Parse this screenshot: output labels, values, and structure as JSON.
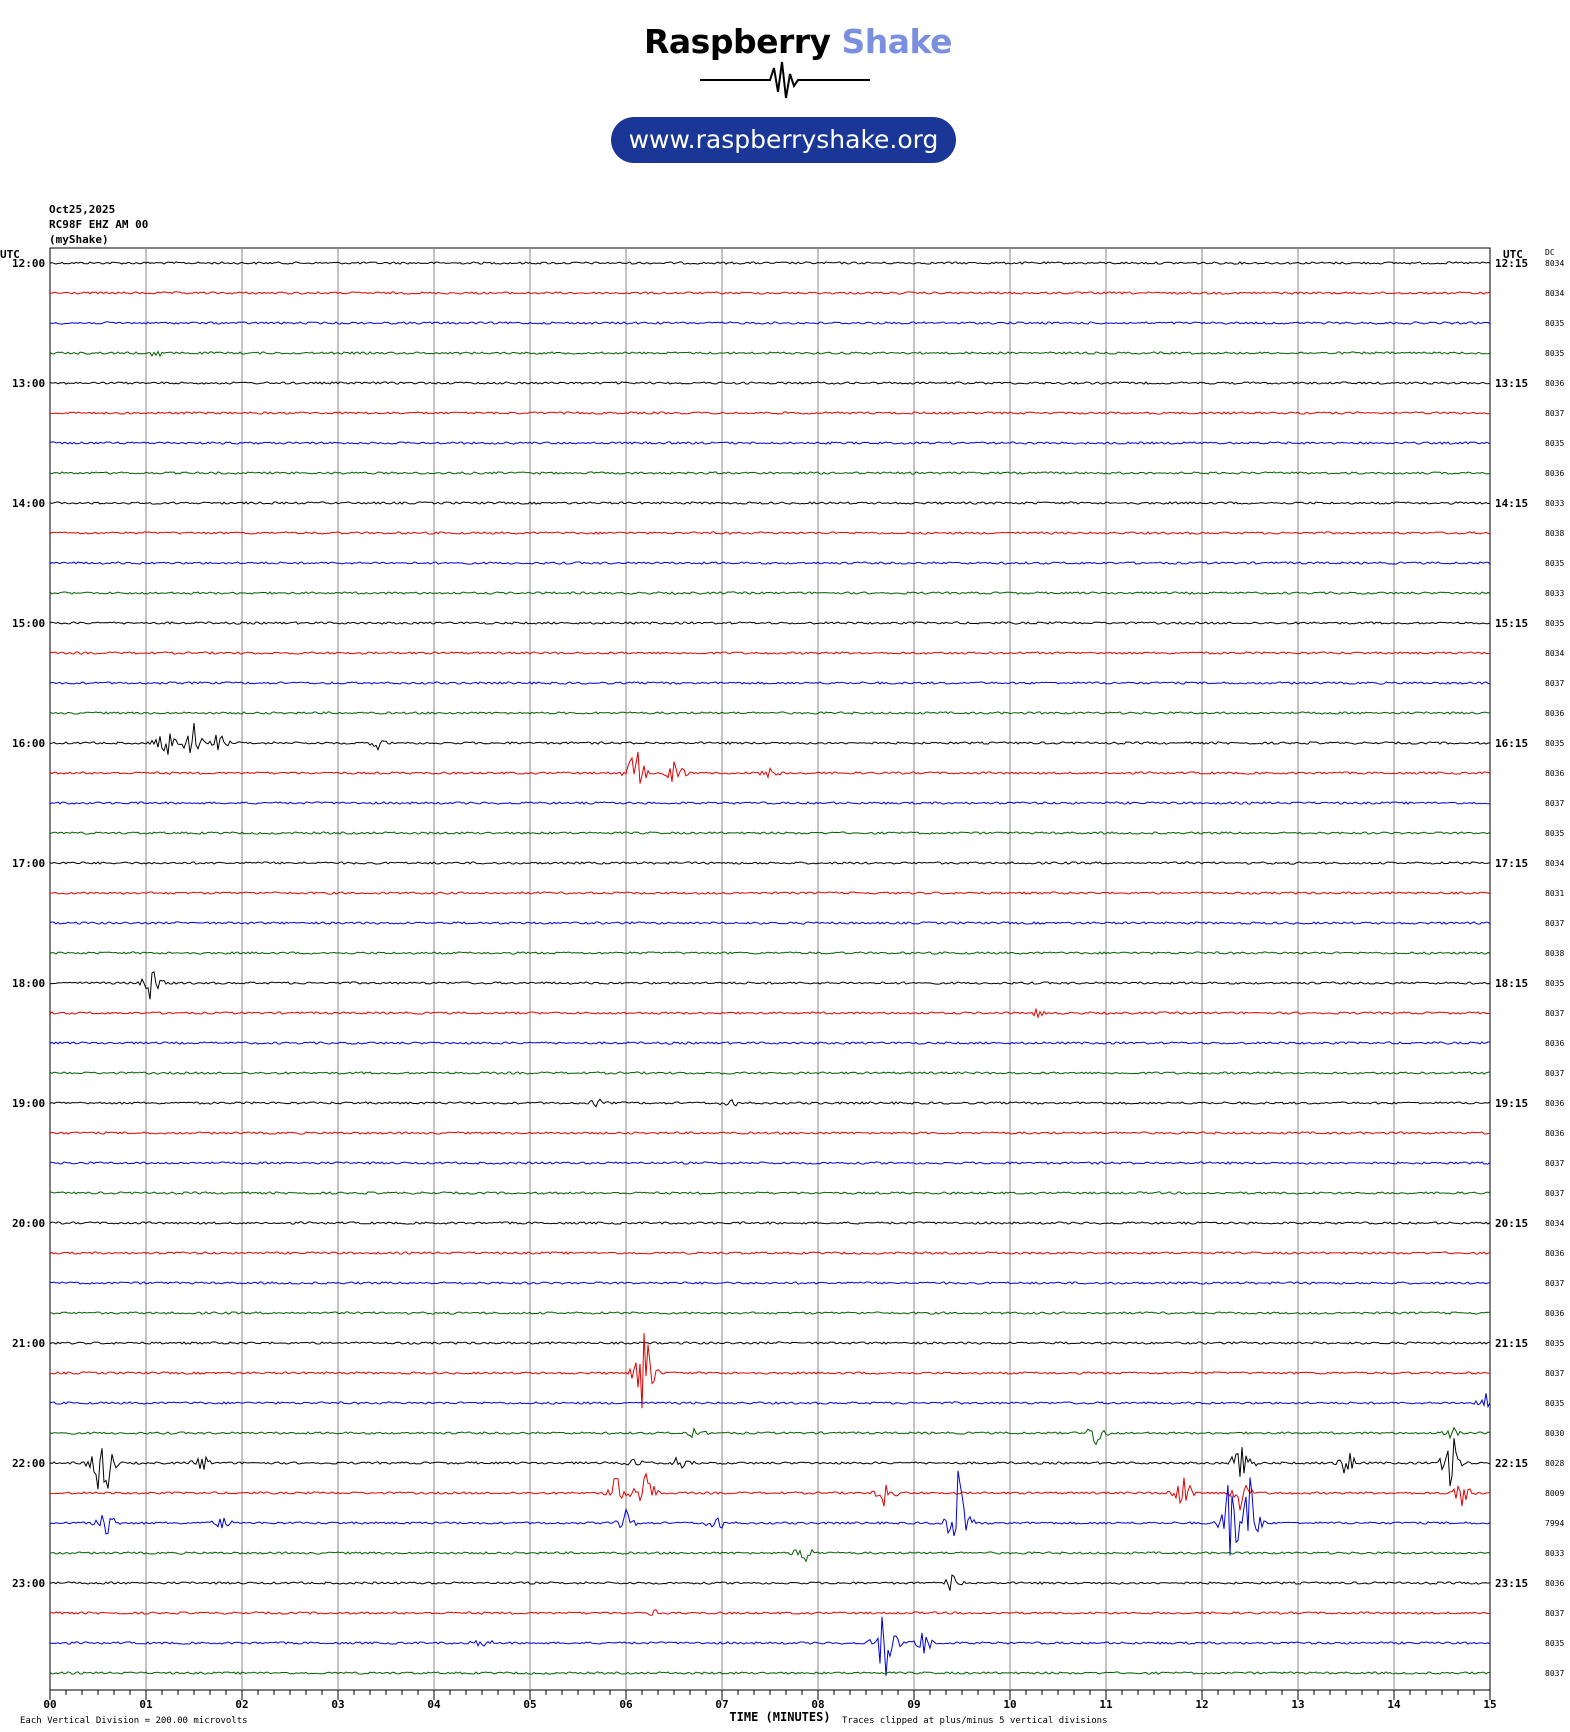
{
  "logo": {
    "word1": "Raspberry",
    "word2": "Shake",
    "url": "www.raspberryshake.org",
    "brand_color": "#1a3797",
    "accent_color": "#7b8fe0"
  },
  "header": {
    "date": "Oct25,2025",
    "station": "RC98F EHZ AM 00",
    "source": "(myShake)"
  },
  "chart_data": {
    "type": "line",
    "description_kind": "helicorder",
    "left_axis_label": "UTC",
    "right_axis_label": "UTC",
    "dc_label": "DC",
    "xlabel": "TIME (MINUTES)",
    "x_ticks": [
      "00",
      "01",
      "02",
      "03",
      "04",
      "05",
      "06",
      "07",
      "08",
      "09",
      "10",
      "11",
      "12",
      "13",
      "14",
      "15"
    ],
    "xlim": [
      0,
      15
    ],
    "footer_left": "Each Vertical Division =  200.00 microvolts",
    "footer_right": "Traces clipped at plus/minus 5 vertical divisions",
    "trace_colors": [
      "#000000",
      "#e00000",
      "#0000e0",
      "#006000"
    ],
    "left_hour_labels": [
      "12:00",
      "13:00",
      "14:00",
      "15:00",
      "16:00",
      "17:00",
      "18:00",
      "19:00",
      "20:00",
      "21:00",
      "22:00",
      "23:00"
    ],
    "right_hour_labels": [
      "12:15",
      "13:15",
      "14:15",
      "15:15",
      "16:15",
      "17:15",
      "18:15",
      "19:15",
      "20:15",
      "21:15",
      "22:15",
      "23:15"
    ],
    "dc_values": [
      "8034",
      "8034",
      "8035",
      "8035",
      "8036",
      "8037",
      "8035",
      "8036",
      "8033",
      "8038",
      "8035",
      "8033",
      "8035",
      "8034",
      "8037",
      "8036",
      "8035",
      "8036",
      "8037",
      "8035",
      "8034",
      "8031",
      "8037",
      "8038",
      "8035",
      "8037",
      "8036",
      "8037",
      "8036",
      "8036",
      "8037",
      "8037",
      "8034",
      "8036",
      "8037",
      "8036",
      "8035",
      "8037",
      "8035",
      "8030",
      "8028",
      "8009",
      "7994",
      "8033",
      "8036",
      "8037",
      "8035",
      "8037"
    ],
    "events": [
      {
        "row": 3,
        "minute": 1.1,
        "amp": 0.6
      },
      {
        "row": 16,
        "minute": 1.2,
        "amp": 2.0
      },
      {
        "row": 16,
        "minute": 1.5,
        "amp": 2.5
      },
      {
        "row": 16,
        "minute": 1.75,
        "amp": 1.0
      },
      {
        "row": 16,
        "minute": 3.4,
        "amp": 0.6
      },
      {
        "row": 17,
        "minute": 6.1,
        "amp": 2.5
      },
      {
        "row": 17,
        "minute": 6.5,
        "amp": 2.0
      },
      {
        "row": 17,
        "minute": 7.5,
        "amp": 0.8
      },
      {
        "row": 24,
        "minute": 1.05,
        "amp": 1.8
      },
      {
        "row": 25,
        "minute": 10.3,
        "amp": 0.4
      },
      {
        "row": 28,
        "minute": 5.7,
        "amp": 0.4
      },
      {
        "row": 28,
        "minute": 7.1,
        "amp": 0.6
      },
      {
        "row": 37,
        "minute": 6.2,
        "amp": 5.0
      },
      {
        "row": 38,
        "minute": 14.95,
        "amp": 0.8
      },
      {
        "row": 39,
        "minute": 6.7,
        "amp": 0.6
      },
      {
        "row": 39,
        "minute": 10.9,
        "amp": 1.5
      },
      {
        "row": 39,
        "minute": 14.6,
        "amp": 0.6
      },
      {
        "row": 40,
        "minute": 0.55,
        "amp": 5.0
      },
      {
        "row": 40,
        "minute": 1.6,
        "amp": 0.8
      },
      {
        "row": 40,
        "minute": 6.1,
        "amp": 0.8
      },
      {
        "row": 40,
        "minute": 6.55,
        "amp": 0.8
      },
      {
        "row": 40,
        "minute": 12.4,
        "amp": 2.5
      },
      {
        "row": 40,
        "minute": 13.5,
        "amp": 2.0
      },
      {
        "row": 40,
        "minute": 14.6,
        "amp": 3.0
      },
      {
        "row": 41,
        "minute": 5.9,
        "amp": 1.6
      },
      {
        "row": 41,
        "minute": 6.2,
        "amp": 3.0
      },
      {
        "row": 41,
        "minute": 8.7,
        "amp": 1.5
      },
      {
        "row": 41,
        "minute": 11.8,
        "amp": 2.0
      },
      {
        "row": 41,
        "minute": 12.4,
        "amp": 2.0
      },
      {
        "row": 41,
        "minute": 14.7,
        "amp": 1.5
      },
      {
        "row": 42,
        "minute": 0.6,
        "amp": 2.5
      },
      {
        "row": 42,
        "minute": 1.8,
        "amp": 0.7
      },
      {
        "row": 42,
        "minute": 6.0,
        "amp": 1.0
      },
      {
        "row": 42,
        "minute": 6.95,
        "amp": 1.2
      },
      {
        "row": 42,
        "minute": 9.45,
        "amp": 5.0
      },
      {
        "row": 42,
        "minute": 12.3,
        "amp": 5.0
      },
      {
        "row": 42,
        "minute": 12.5,
        "amp": 4.0
      },
      {
        "row": 43,
        "minute": 7.85,
        "amp": 1.2
      },
      {
        "row": 44,
        "minute": 9.4,
        "amp": 1.0
      },
      {
        "row": 45,
        "minute": 6.3,
        "amp": 0.4
      },
      {
        "row": 46,
        "minute": 4.5,
        "amp": 0.6
      },
      {
        "row": 46,
        "minute": 8.7,
        "amp": 4.5
      },
      {
        "row": 46,
        "minute": 9.1,
        "amp": 1.2
      }
    ]
  }
}
